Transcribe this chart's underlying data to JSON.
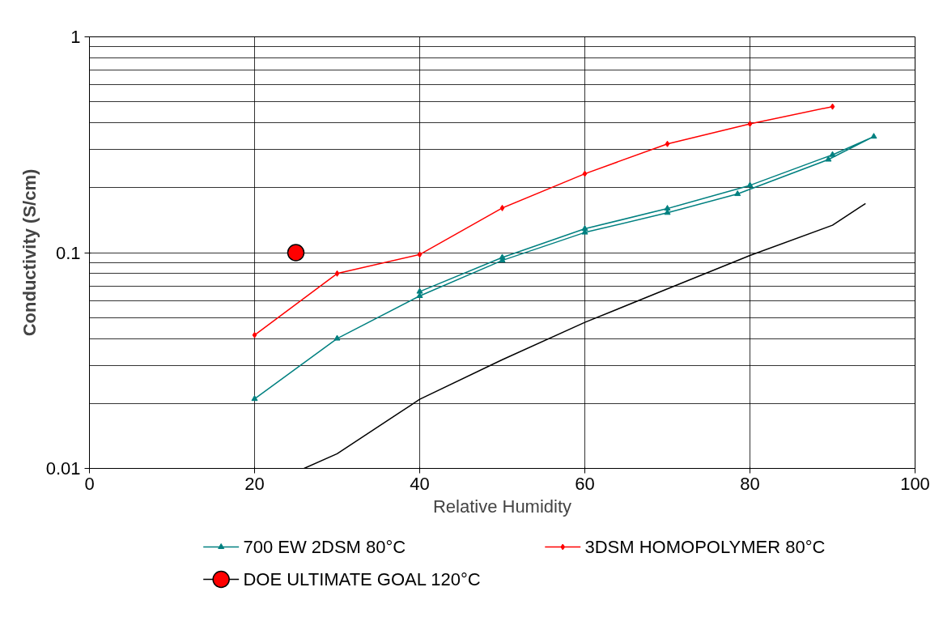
{
  "chart_data": {
    "type": "line",
    "xlabel": "Relative Humidity",
    "ylabel": "Conductivity (S/cm)",
    "xlim": [
      0,
      100
    ],
    "xticks": [
      0,
      20,
      40,
      60,
      80,
      100
    ],
    "ylim": [
      0.01,
      1
    ],
    "yticks": [
      0.01,
      0.1,
      1
    ],
    "log": true,
    "grid": true,
    "legend": "bottom",
    "series": [
      {
        "name": "700 EW 2DSM 80°C",
        "color": "#008080",
        "marker": "triangle",
        "x": [
          20,
          30,
          40,
          50,
          60,
          70,
          78.5,
          89.5,
          95,
          90,
          80,
          70,
          60,
          50,
          40
        ],
        "values": [
          0.021,
          0.04,
          0.063,
          0.092,
          0.124,
          0.153,
          0.187,
          0.27,
          0.345,
          0.284,
          0.205,
          0.16,
          0.129,
          0.095,
          0.066
        ]
      },
      {
        "name": "3DSM HOMOPOLYMER 80°C",
        "color": "#ff0000",
        "marker": "diamond",
        "x": [
          20,
          30,
          40,
          50,
          60,
          70,
          80,
          90
        ],
        "values": [
          0.0415,
          0.08,
          0.098,
          0.161,
          0.232,
          0.319,
          0.395,
          0.475
        ]
      },
      {
        "color": "#000000",
        "marker": "none",
        "x": [
          26,
          30,
          40,
          50,
          60,
          70,
          80,
          90,
          94
        ],
        "values": [
          0.01,
          0.0117,
          0.0209,
          0.0319,
          0.0475,
          0.0679,
          0.097,
          0.134,
          0.169
        ]
      },
      {
        "name": "DOE ULTIMATE GOAL 120°C",
        "type": "scatter",
        "color": "#ff0000",
        "marker": "circle",
        "x": [
          25
        ],
        "values": [
          0.1
        ]
      }
    ]
  }
}
